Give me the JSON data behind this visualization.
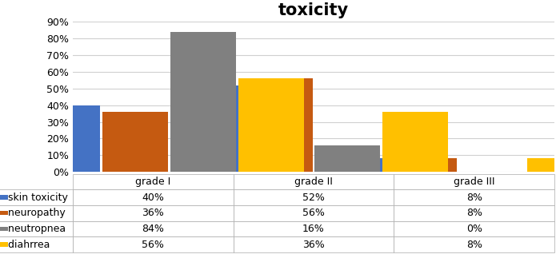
{
  "title": "toxicity",
  "categories": [
    "grade I",
    "grade II",
    "grade III"
  ],
  "series": [
    {
      "label": "skin toxicity",
      "color": "#4472C4",
      "values": [
        40,
        52,
        8
      ]
    },
    {
      "label": "neuropathy",
      "color": "#C55A11",
      "values": [
        36,
        56,
        8
      ]
    },
    {
      "label": "neutropnea",
      "color": "#808080",
      "values": [
        84,
        16,
        0
      ]
    },
    {
      "label": "diahrrea",
      "color": "#FFC000",
      "values": [
        56,
        36,
        8
      ]
    }
  ],
  "ylim": [
    0,
    90
  ],
  "yticks": [
    0,
    10,
    20,
    30,
    40,
    50,
    60,
    70,
    80,
    90
  ],
  "ytick_labels": [
    "0%",
    "10%",
    "20%",
    "30%",
    "40%",
    "50%",
    "60%",
    "70%",
    "80%",
    "90%"
  ],
  "table_rows": [
    [
      "40%",
      "52%",
      "8%"
    ],
    [
      "36%",
      "56%",
      "8%"
    ],
    [
      "84%",
      "16%",
      "0%"
    ],
    [
      "56%",
      "36%",
      "8%"
    ]
  ],
  "row_colors": [
    "#4472C4",
    "#C55A11",
    "#808080",
    "#FFC000"
  ],
  "background_color": "#FFFFFF",
  "grid_color": "#D0D0D0",
  "bar_width": 0.15,
  "title_fontsize": 15,
  "tick_fontsize": 9,
  "table_fontsize": 9
}
